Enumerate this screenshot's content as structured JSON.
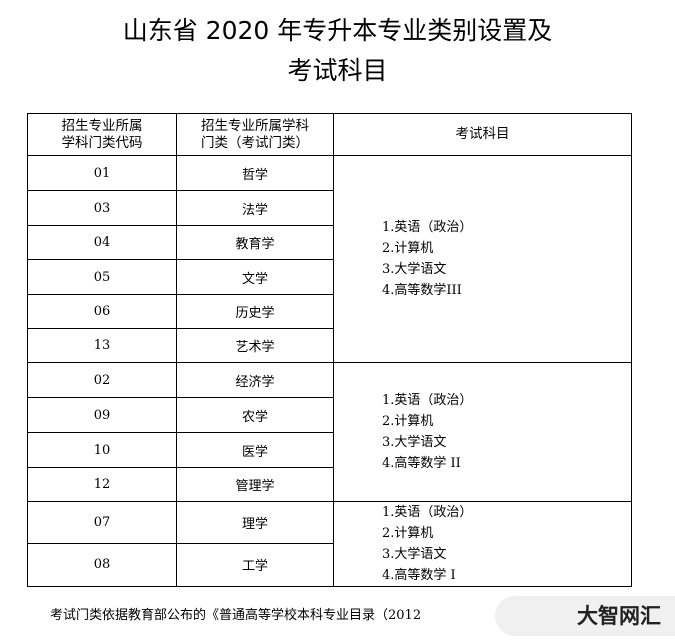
{
  "title": {
    "line1": "山东省 2020 年专升本专业类别设置及",
    "line2": "考试科目"
  },
  "headers": [
    "招生专业所属学科门类代码",
    "招生专业所属学科门类（考试门类）",
    "考试科目"
  ],
  "header_lines": {
    "c1a": "招生专业所属",
    "c1b": "学科门类代码",
    "c2a": "招生专业所属学科",
    "c2b": "门类（考试门类）",
    "c3": "考试科目"
  },
  "rows": [
    {
      "code": "01",
      "category": "哲学"
    },
    {
      "code": "03",
      "category": "法学"
    },
    {
      "code": "04",
      "category": "教育学"
    },
    {
      "code": "05",
      "category": "文学"
    },
    {
      "code": "06",
      "category": "历史学"
    },
    {
      "code": "13",
      "category": "艺术学"
    },
    {
      "code": "02",
      "category": "经济学"
    },
    {
      "code": "09",
      "category": "农学"
    },
    {
      "code": "10",
      "category": "医学"
    },
    {
      "code": "12",
      "category": "管理学"
    },
    {
      "code": "07",
      "category": "理学"
    },
    {
      "code": "08",
      "category": "工学"
    }
  ],
  "groups": [
    {
      "subjects": [
        "1.英语（政治）",
        "2.计算机",
        "3.大学语文",
        "4.高等数学III"
      ]
    },
    {
      "subjects": [
        "1.英语（政治）",
        "2.计算机",
        "3.大学语文",
        "4.高等数学 II"
      ]
    },
    {
      "subjects": [
        "1.英语（政治）",
        "2.计算机",
        "3.大学语文",
        "4.高等数学 I"
      ]
    }
  ],
  "footnote": "考试门类依据教育部公布的《普通高等学校本科专业目录（2012",
  "watermark": "大智网汇"
}
